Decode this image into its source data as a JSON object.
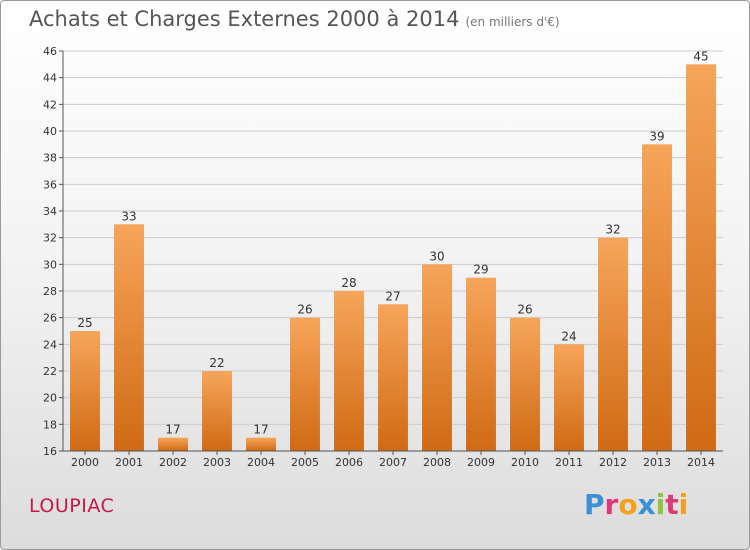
{
  "header": {
    "title": "Achats et Charges Externes 2000 à 2014",
    "subtitle": "(en milliers d'€)"
  },
  "footer": {
    "town": "LOUPIAC",
    "brand": "Proxiti",
    "brand_colors": [
      "#3a8fd6",
      "#e0397a",
      "#f2a11f",
      "#3a8fd6",
      "#8cc63f",
      "#e0397a",
      "#f2a11f"
    ]
  },
  "colors": {
    "bar_top": "#f6a55a",
    "bar_bottom": "#d06a14",
    "grid": "#cccccc"
  },
  "chart_data": {
    "type": "bar",
    "categories": [
      "2000",
      "2001",
      "2002",
      "2003",
      "2004",
      "2005",
      "2006",
      "2007",
      "2008",
      "2009",
      "2010",
      "2011",
      "2012",
      "2013",
      "2014"
    ],
    "values": [
      25,
      33,
      17,
      22,
      17,
      26,
      28,
      27,
      30,
      29,
      26,
      24,
      32,
      39,
      45
    ],
    "ylim": [
      16,
      46
    ],
    "yticks": [
      16,
      18,
      20,
      22,
      24,
      26,
      28,
      30,
      32,
      34,
      36,
      38,
      40,
      42,
      44,
      46
    ],
    "grid": true,
    "xlabel": "",
    "ylabel": ""
  }
}
